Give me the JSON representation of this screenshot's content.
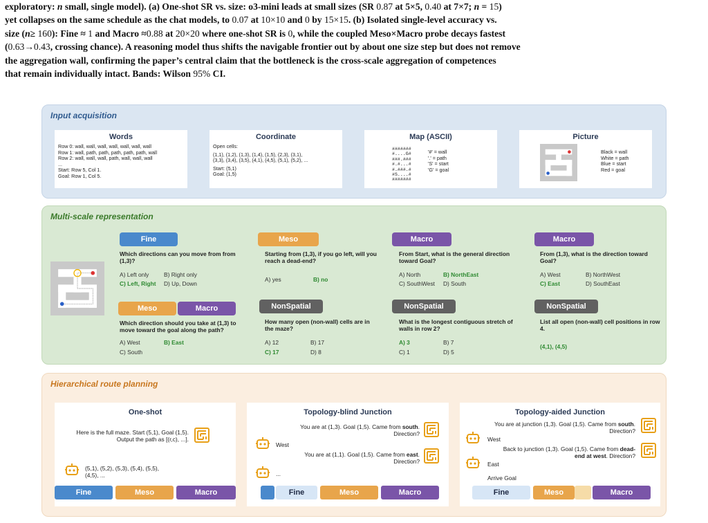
{
  "caption": {
    "lines": [
      "exploratory: n small, single model). (a) One-shot SR vs. size: o3-mini leads at small sizes (SR 0.87 at 5×5, 0.40 at 7×7; n = 15)",
      "yet collapses on the same schedule as the chat models, to 0.07 at 10×10 and 0 by 15×15. (b) Isolated single-level accuracy vs.",
      "size (n ≥ 160): Fine ≈ 1 and Macro ≈ 0.88 at 20×20 where one-shot SR is 0, while the coupled Meso×Macro probe decays fastest",
      "(0.63→0.43, crossing chance). A reasoning model thus shifts the navigable frontier out by about one size step but does not remove",
      "the aggregation wall, confirming the paper’s central claim that the bottleneck is the cross-scale aggregation of competences",
      "that remain individually intact. Bands: Wilson 95% CI."
    ]
  },
  "input": {
    "title": "Input acquisition",
    "words": {
      "header": "Words",
      "lines": [
        "Row 0: wall, wall, wall, wall, wall, wall, wall",
        "Row 1: wall, path, path, path, path, path, wall",
        "Row 2: wall, wall, wall, path, wall, wall, wall",
        "...",
        "Start: Row 5, Col 1.",
        "Goal: Row 1, Col 5."
      ]
    },
    "coordinate": {
      "header": "Coordinate",
      "lines": [
        "Open cells:",
        "(1,1), (1,2), (1,3), (1,4), (1,5), (2,3), (3,1),",
        "(3,3), (3,4), (3,5), (4,1), (4,5), (5,1), (5,2), ...",
        "Start: (5,1)",
        "Goal: (1,5)"
      ]
    },
    "map": {
      "header": "Map (ASCII)",
      "ascii": [
        "#######",
        "#....G#",
        "###.###",
        "#.#...#",
        "#.###.#",
        "#S....#",
        "#######"
      ],
      "legend": [
        "'#' = wall",
        "'.' = path",
        "'S' = start",
        "'G' = goal"
      ]
    },
    "picture": {
      "header": "Picture",
      "legend": [
        "Black = wall",
        "White = path",
        "Blue = start",
        "Red = goal"
      ]
    }
  },
  "multi": {
    "title": "Multi-scale representation",
    "cards": [
      {
        "chips": [
          "Fine"
        ],
        "question": "Which directions can you move from from (1,3)?",
        "options": [
          "A) Left only",
          "B) Right only",
          "C) Left, Right",
          "D) Up, Down"
        ],
        "correct": 2
      },
      {
        "chips": [
          "Meso"
        ],
        "question": "Starting from (1,3), if you go left, will you reach a dead-end?",
        "options": [
          "A) yes",
          "B) no"
        ],
        "correct": 1
      },
      {
        "chips": [
          "Macro"
        ],
        "question": "From Start, what is the general direction toward Goal?",
        "options": [
          "A) North",
          "B) NorthEast",
          "C) SouthWest",
          "D) South"
        ],
        "correct": 1
      },
      {
        "chips": [
          "Macro"
        ],
        "question": "From (1,3), what is the direction toward Goal?",
        "options": [
          "A) West",
          "B) NorthWest",
          "C) East",
          "D) SouthEast"
        ],
        "correct": 2
      },
      {
        "chips": [
          "Meso",
          "Macro"
        ],
        "question": "Which direction should you take at (1,3) to move toward the goal along the path?",
        "options": [
          "A) West",
          "B) East",
          "C) South"
        ],
        "correct": 1
      },
      {
        "chips": [
          "NonSpatial"
        ],
        "question": "How many open (non-wall) cells are in the maze?",
        "options": [
          "A) 12",
          "B) 17",
          "C) 17",
          "D) 8"
        ],
        "correct": 2
      },
      {
        "chips": [
          "NonSpatial"
        ],
        "question": "What is the longest contiguous stretch of walls in row 2?",
        "options": [
          "A) 3",
          "B) 7",
          "C) 1",
          "D) 5"
        ],
        "correct": 0
      },
      {
        "chips": [
          "NonSpatial"
        ],
        "question": "List all open (non-wall) cell positions in row 4.",
        "options": [
          "(4,1), (4,5)"
        ],
        "correct": 0
      }
    ]
  },
  "route": {
    "title": "Hierarchical route planning",
    "oneshot": {
      "header": "One-shot",
      "prompt": [
        "Here is the full maze. Start (5,1), Goal (1,5).",
        "Output the path as [(r,c), ...]."
      ],
      "answer": [
        "(5,1), (5,2), (5,3), (5,4), (5,5),",
        "(4,5), ..."
      ],
      "bars": [
        "Fine",
        "Meso",
        "Macro"
      ]
    },
    "blind": {
      "header": "Topology-blind Junction",
      "p1a": "You are at (1,3). Goal (1,5). Came from ",
      "p1b": "south",
      "p1c": ".",
      "p1d": "Direction?",
      "a1": "West",
      "p2a": "You are at (1,1). Goal (1,5). Came from ",
      "p2b": "east",
      "p2c": ".",
      "p2d": "Direction?",
      "a2": "...",
      "bars": [
        "Fine",
        "Meso",
        "Macro"
      ]
    },
    "aided": {
      "header": "Topology-aided Junction",
      "p1a": "You are at junction (1,3). Goal (1,5). Came from ",
      "p1b": "south",
      "p1c": ".",
      "p1d": "Direction?",
      "a1": "West",
      "p2a": "Back to junction (1,3). Goal (1,5). Came from ",
      "p2b": "dead-",
      "p2c": "end at west",
      "p2d": ". Direction?",
      "a2": "East",
      "a3": "Arrive Goal",
      "bars": [
        "Fine",
        "Meso",
        "Macro"
      ]
    }
  }
}
